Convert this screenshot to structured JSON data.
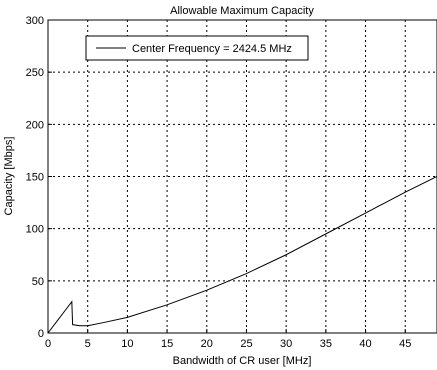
{
  "chart_data": {
    "type": "line",
    "title": "Allowable Maximum Capacity",
    "xlabel": "Bandwidth of CR user [MHz]",
    "ylabel": "Capacity [Mbps]",
    "xlim": [
      0,
      49
    ],
    "ylim": [
      0,
      300
    ],
    "xticks": [
      0,
      5,
      10,
      15,
      20,
      25,
      30,
      35,
      40,
      45
    ],
    "yticks": [
      0,
      50,
      100,
      150,
      200,
      250,
      300
    ],
    "grid": true,
    "legend_position": "top-left",
    "series": [
      {
        "name": "Center Frequency = 2424.5 MHz",
        "color": "#000000",
        "x": [
          0,
          1,
          2,
          3,
          3.1,
          4,
          5,
          7,
          10,
          15,
          20,
          25,
          30,
          35,
          40,
          45,
          49
        ],
        "y": [
          0,
          10,
          20,
          30,
          8,
          7,
          7,
          10,
          15,
          27,
          41,
          57,
          75,
          95,
          115,
          135,
          150
        ]
      }
    ]
  }
}
